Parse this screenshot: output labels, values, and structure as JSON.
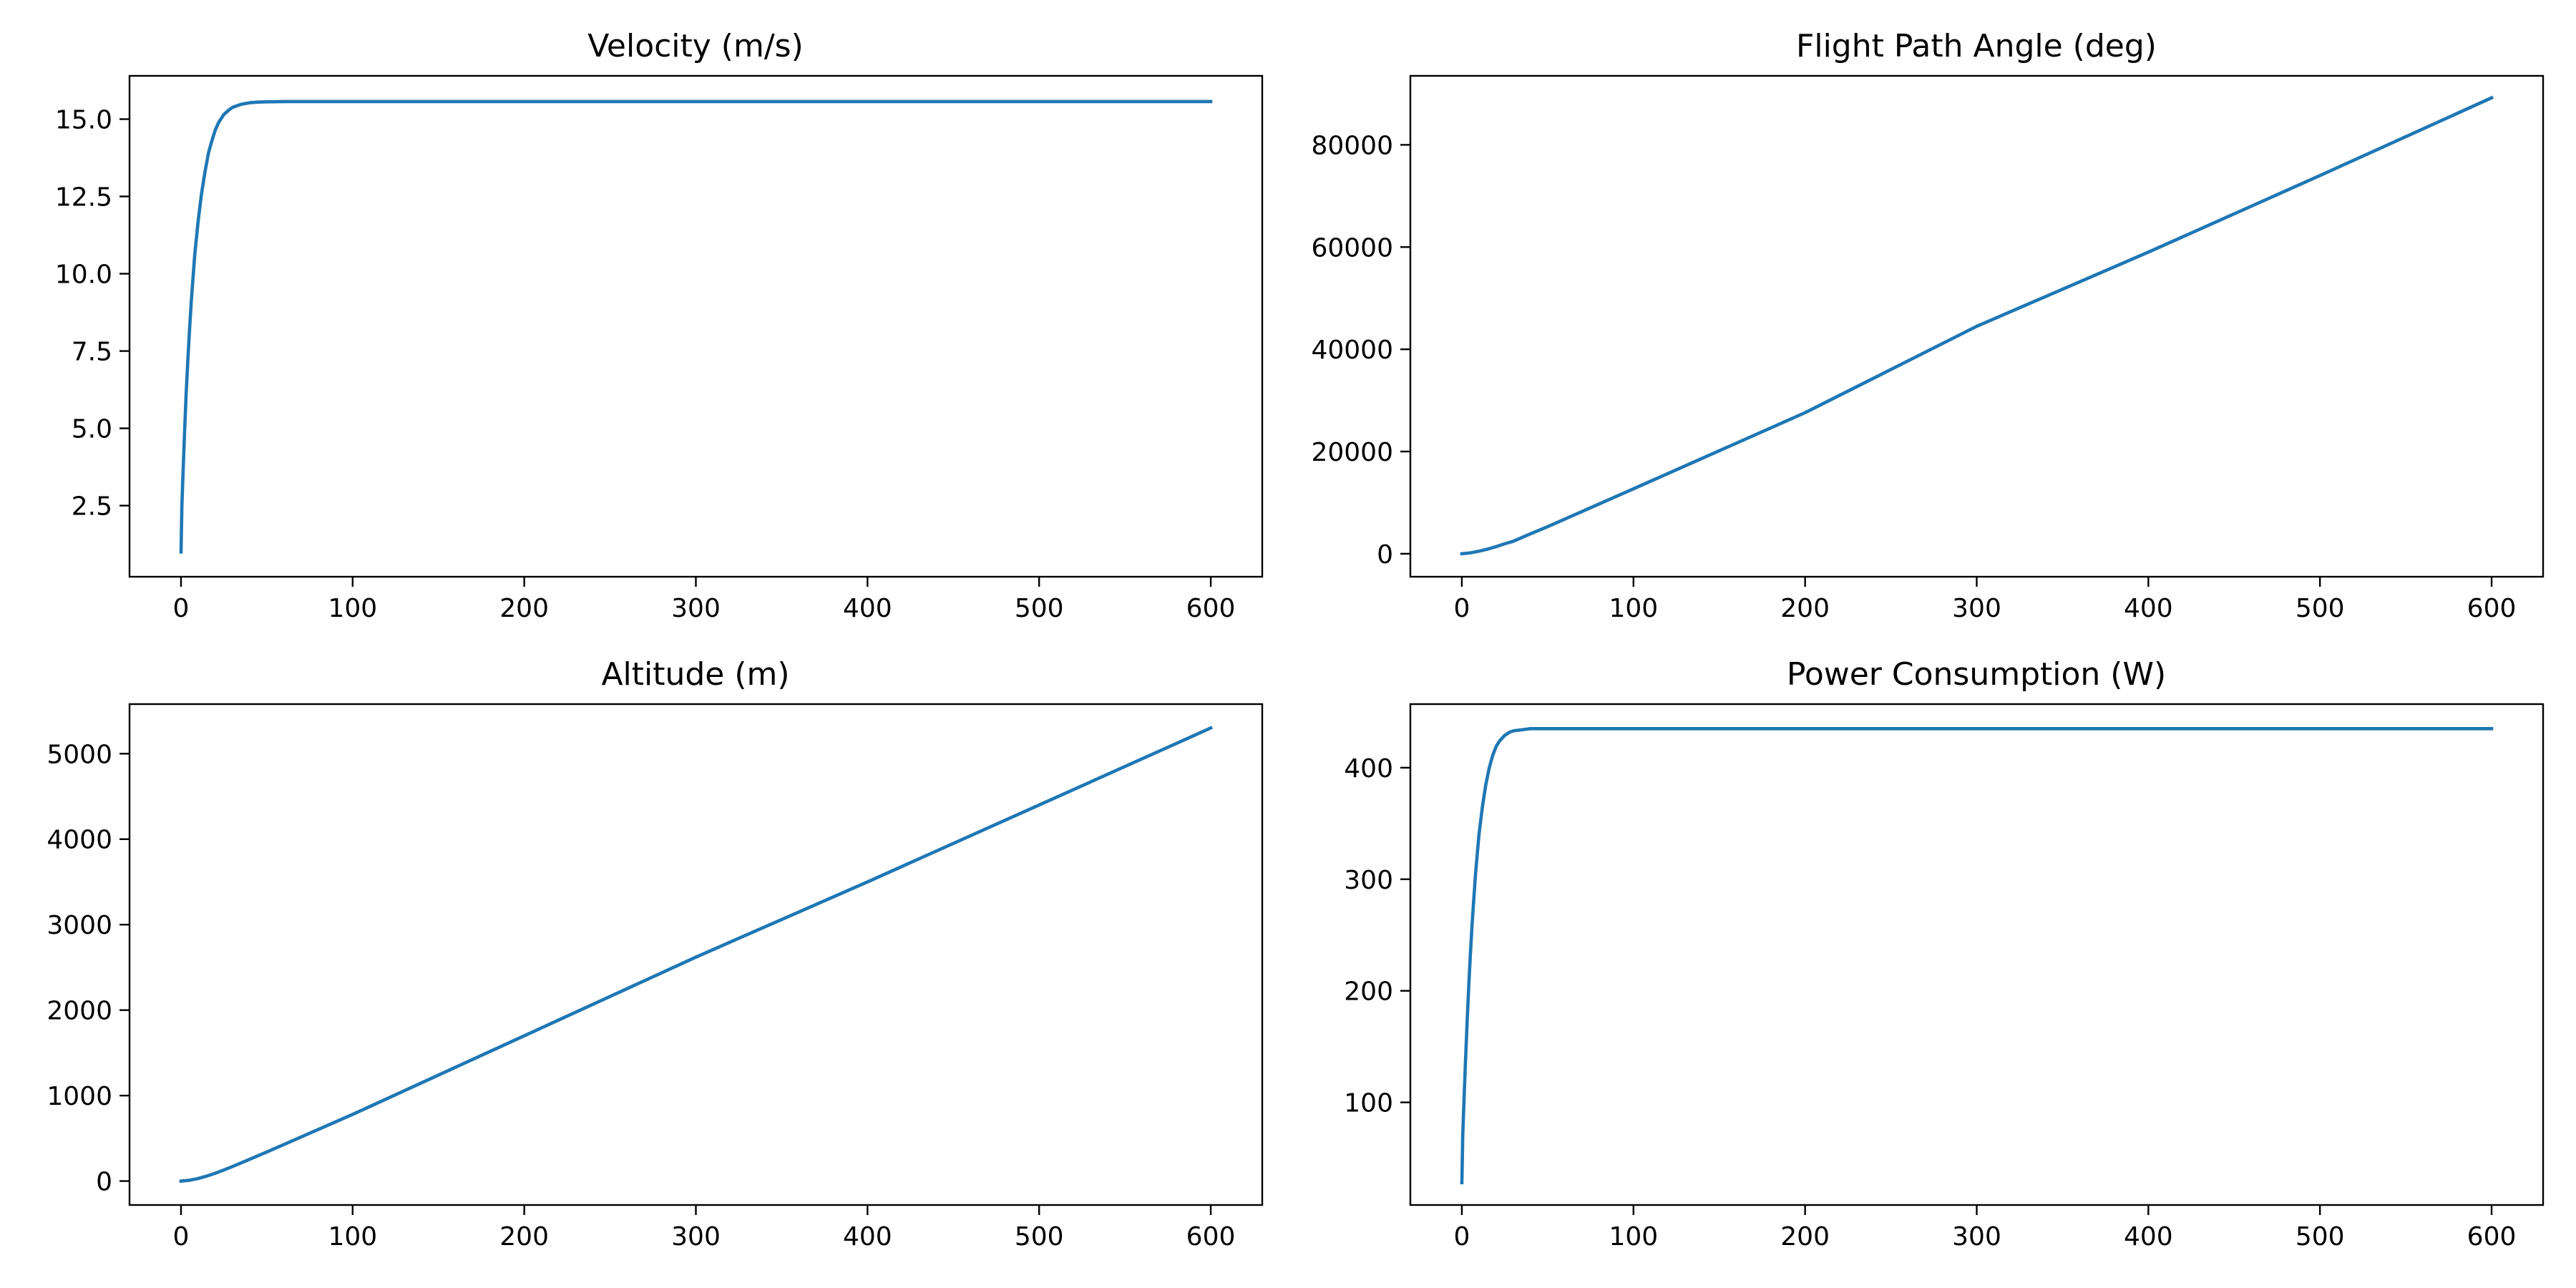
{
  "colors": {
    "series": "#1f77b4",
    "axes": "#000000",
    "background": "#ffffff"
  },
  "chart_data": [
    {
      "type": "line",
      "title": "Velocity (m/s)",
      "xlim": [
        -30,
        630
      ],
      "ylim": [
        0.2,
        16.4
      ],
      "xticks": [
        0,
        100,
        200,
        300,
        400,
        500,
        600
      ],
      "yticks": [
        2.5,
        5.0,
        7.5,
        10.0,
        12.5,
        15.0
      ],
      "ytick_labels": [
        "2.5",
        "5.0",
        "7.5",
        "10.0",
        "12.5",
        "15.0"
      ],
      "grid": false,
      "x": [
        0,
        0.5,
        1,
        2,
        3,
        4,
        5,
        6,
        8,
        10,
        12,
        14,
        16,
        18,
        20,
        22,
        25,
        28,
        30,
        35,
        40,
        45,
        50,
        60,
        80,
        100,
        200,
        300,
        400,
        500,
        600
      ],
      "values": [
        1.0,
        2.5,
        3.3,
        4.8,
        6.1,
        7.2,
        8.2,
        9.1,
        10.6,
        11.7,
        12.6,
        13.3,
        13.9,
        14.3,
        14.65,
        14.9,
        15.15,
        15.3,
        15.38,
        15.48,
        15.53,
        15.55,
        15.56,
        15.57,
        15.57,
        15.57,
        15.57,
        15.57,
        15.57,
        15.57,
        15.57
      ]
    },
    {
      "type": "line",
      "title": "Flight Path Angle (deg)",
      "xlim": [
        -30,
        630
      ],
      "ylim": [
        -4500,
        93500
      ],
      "xticks": [
        0,
        100,
        200,
        300,
        400,
        500,
        600
      ],
      "yticks": [
        0,
        20000,
        40000,
        60000,
        80000
      ],
      "ytick_labels": [
        "0",
        "20000",
        "40000",
        "60000",
        "80000"
      ],
      "grid": false,
      "x": [
        0,
        5,
        10,
        15,
        20,
        25,
        30,
        40,
        50,
        100,
        200,
        300,
        400,
        500,
        600
      ],
      "values": [
        0,
        180,
        500,
        900,
        1400,
        1950,
        2450,
        3900,
        5300,
        12700,
        27600,
        44500,
        59000,
        74000,
        89200
      ]
    },
    {
      "type": "line",
      "title": "Altitude (m)",
      "xlim": [
        -30,
        630
      ],
      "ylim": [
        -280,
        5580
      ],
      "xticks": [
        0,
        100,
        200,
        300,
        400,
        500,
        600
      ],
      "yticks": [
        0,
        1000,
        2000,
        3000,
        4000,
        5000
      ],
      "ytick_labels": [
        "0",
        "1000",
        "2000",
        "3000",
        "4000",
        "5000"
      ],
      "grid": false,
      "x": [
        0,
        5,
        10,
        15,
        20,
        25,
        30,
        40,
        50,
        100,
        200,
        300,
        400,
        500,
        600
      ],
      "values": [
        0,
        10,
        30,
        58,
        92,
        130,
        170,
        255,
        340,
        780,
        1700,
        2620,
        3500,
        4400,
        5300
      ]
    },
    {
      "type": "line",
      "title": "Power Consumption (W)",
      "xlim": [
        -30,
        630
      ],
      "ylim": [
        8,
        457
      ],
      "xticks": [
        0,
        100,
        200,
        300,
        400,
        500,
        600
      ],
      "yticks": [
        100,
        200,
        300,
        400
      ],
      "ytick_labels": [
        "100",
        "200",
        "300",
        "400"
      ],
      "grid": false,
      "x": [
        0,
        0.5,
        1,
        2,
        3,
        4,
        5,
        6,
        8,
        10,
        12,
        14,
        16,
        18,
        20,
        22,
        25,
        28,
        30,
        35,
        40,
        45,
        50,
        60,
        80,
        100,
        200,
        300,
        400,
        500,
        600
      ],
      "values": [
        28,
        70,
        92,
        133,
        170,
        203,
        233,
        260,
        305,
        340,
        365,
        385,
        400,
        411,
        419,
        424,
        429,
        432,
        433,
        434,
        435,
        435,
        435,
        435,
        435,
        435,
        435,
        435,
        435,
        435,
        435
      ]
    }
  ]
}
